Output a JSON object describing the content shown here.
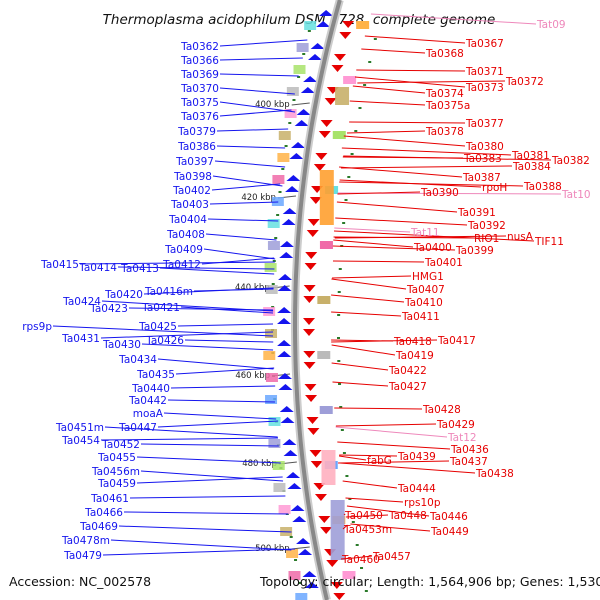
{
  "title": "Thermoplasma acidophilum DSM 1728, complete genome",
  "footer": {
    "accession": "Accession: NC_002578",
    "info": "Topology: circular; Length: 1,564,906 bp; Genes: 1,530"
  },
  "colors": {
    "backbone": "#888888",
    "forward": "#1515ee",
    "reverse": "#e60000",
    "trna": "#ee88bb",
    "tick": "#2a7a2a"
  },
  "ticks": [
    "400 kbp",
    "420 kbp",
    "440 kbp",
    "460 kbp",
    "480 kbp",
    "500 kbp"
  ],
  "left_labels": [
    "Ta0362",
    "Ta0366",
    "Ta0369",
    "Ta0370",
    "Ta0375",
    "Ta0376",
    "Ta0379",
    "Ta0386",
    "Ta0397",
    "Ta0398",
    "Ta0402",
    "Ta0403",
    "Ta0404",
    "Ta0408",
    "Ta0409",
    "Ta0412",
    "Ta0415",
    "Ta0414",
    "Ta0413",
    "Ta0424",
    "Ta0420",
    "Ta0416m",
    "Ta0423",
    "Ta0421",
    "rps9p",
    "Ta0431",
    "Ta0425",
    "Ta0426",
    "Ta0430",
    "Ta0434",
    "Ta0435",
    "Ta0440",
    "Ta0442",
    "moaA",
    "Ta0451m",
    "Ta0447",
    "Ta0454",
    "Ta0452",
    "Ta0455",
    "Ta0456m",
    "Ta0459",
    "Ta0461",
    "Ta0466",
    "Ta0469",
    "Ta0478m",
    "Ta0479"
  ],
  "right_labels": [
    "Tat09",
    "Ta0367",
    "Ta0368",
    "Ta0371",
    "Ta0372",
    "Ta0373",
    "Ta0374",
    "Ta0375a",
    "Ta0377",
    "Ta0378",
    "Ta0380",
    "Ta0381",
    "Ta0382",
    "Ta0383",
    "Ta0384",
    "Ta0387",
    "rpoH",
    "Ta0388",
    "Tat10",
    "Ta0390",
    "Ta0391",
    "Ta0392",
    "Tat11",
    "RIO1",
    "nusA",
    "TIF11",
    "Ta0400",
    "Ta0399",
    "Ta0401",
    "HMG1",
    "Ta0407",
    "Ta0410",
    "Ta0411",
    "Ta0418",
    "Ta0417",
    "Ta0419",
    "Ta0422",
    "Ta0427",
    "Ta0428",
    "Ta0429",
    "Tat12",
    "Ta0436",
    "fabG",
    "Ta0439",
    "Ta0437",
    "Ta0438",
    "Ta0444",
    "rps10p",
    "Ta0450",
    "Ta0448",
    "Ta0446",
    "Ta0449",
    "Ta0453m",
    "Ta0460",
    "Ta0457"
  ]
}
